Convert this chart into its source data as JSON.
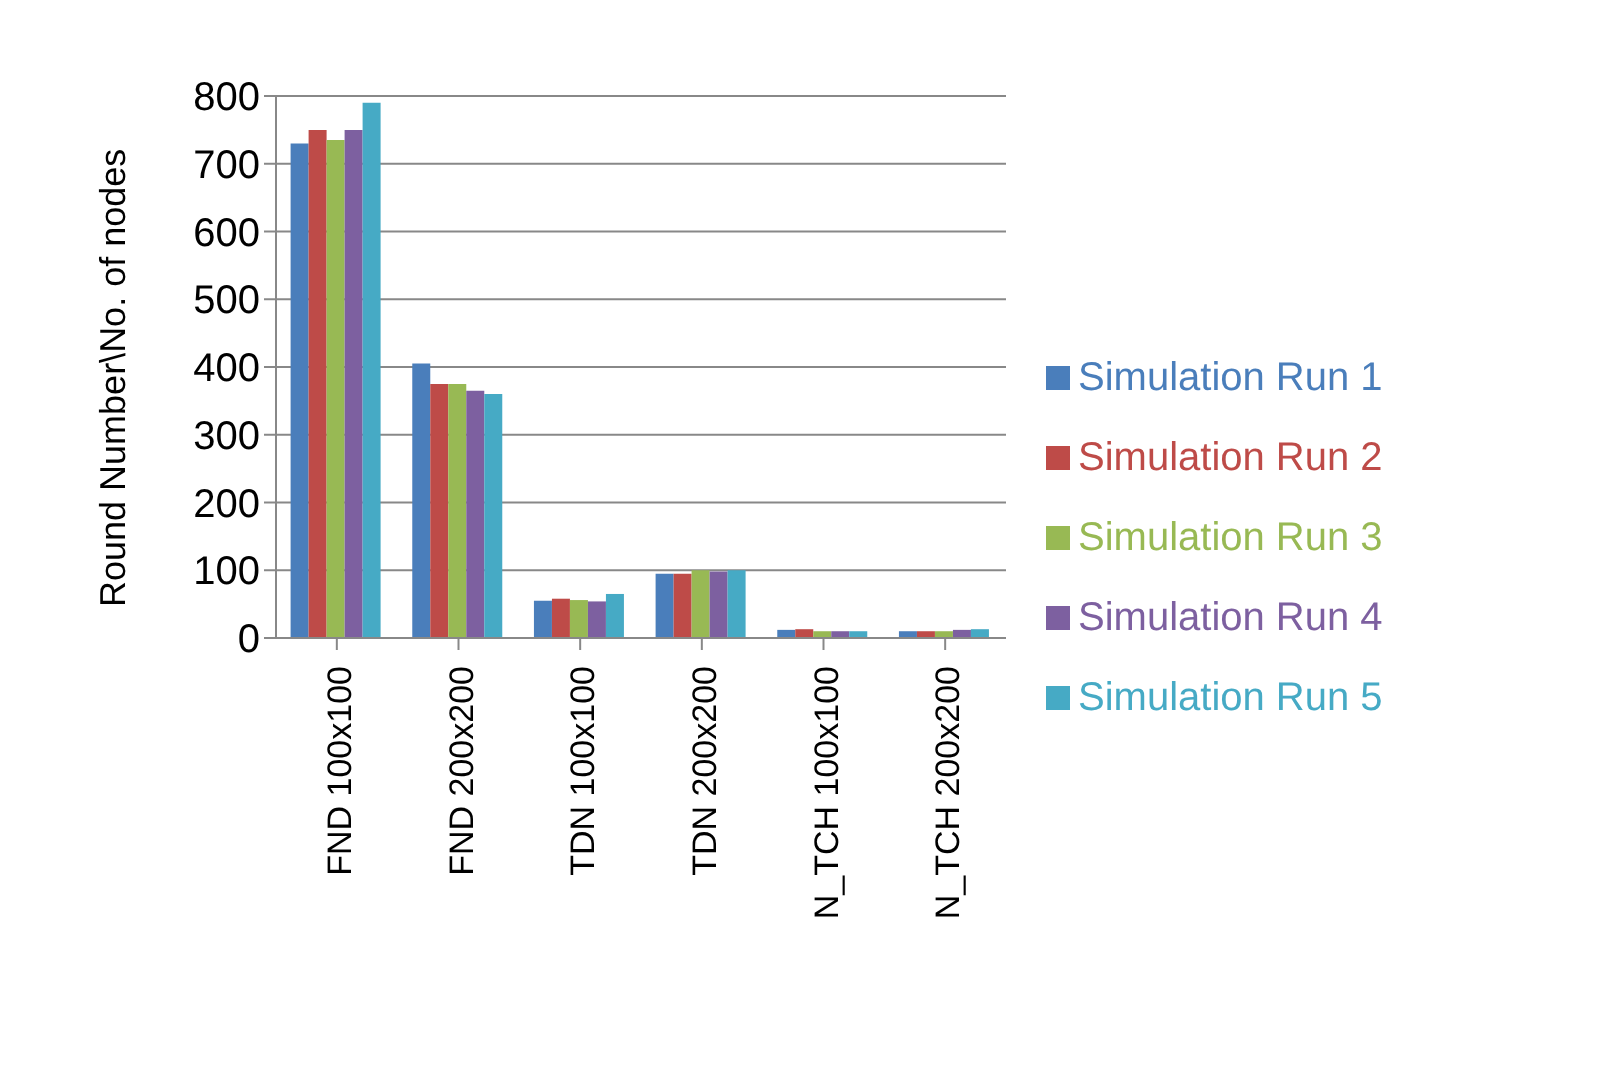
{
  "chart_data": {
    "type": "bar",
    "ylabel": "Round Number\\No. of nodes",
    "categories": [
      "FND 100x100",
      "FND 200x200",
      "TDN 100x100",
      "TDN 200x200",
      "N_TCH 100x100",
      "N_TCH 200x200"
    ],
    "series": [
      {
        "name": "Simulation Run 1",
        "color": "#4a7ebb",
        "values": [
          730,
          405,
          55,
          95,
          12,
          10
        ]
      },
      {
        "name": "Simulation Run 2",
        "color": "#be4b48",
        "values": [
          750,
          375,
          58,
          95,
          13,
          10
        ]
      },
      {
        "name": "Simulation Run 3",
        "color": "#98b954",
        "values": [
          735,
          375,
          56,
          100,
          10,
          10
        ]
      },
      {
        "name": "Simulation Run 4",
        "color": "#7d60a0",
        "values": [
          750,
          365,
          54,
          98,
          10,
          12
        ]
      },
      {
        "name": "Simulation Run 5",
        "color": "#46aac5",
        "values": [
          790,
          360,
          65,
          100,
          10,
          13
        ]
      }
    ],
    "ylim": [
      0,
      800
    ],
    "yticks": [
      0,
      100,
      200,
      300,
      400,
      500,
      600,
      700,
      800
    ],
    "grid": "y",
    "legend": "right"
  }
}
